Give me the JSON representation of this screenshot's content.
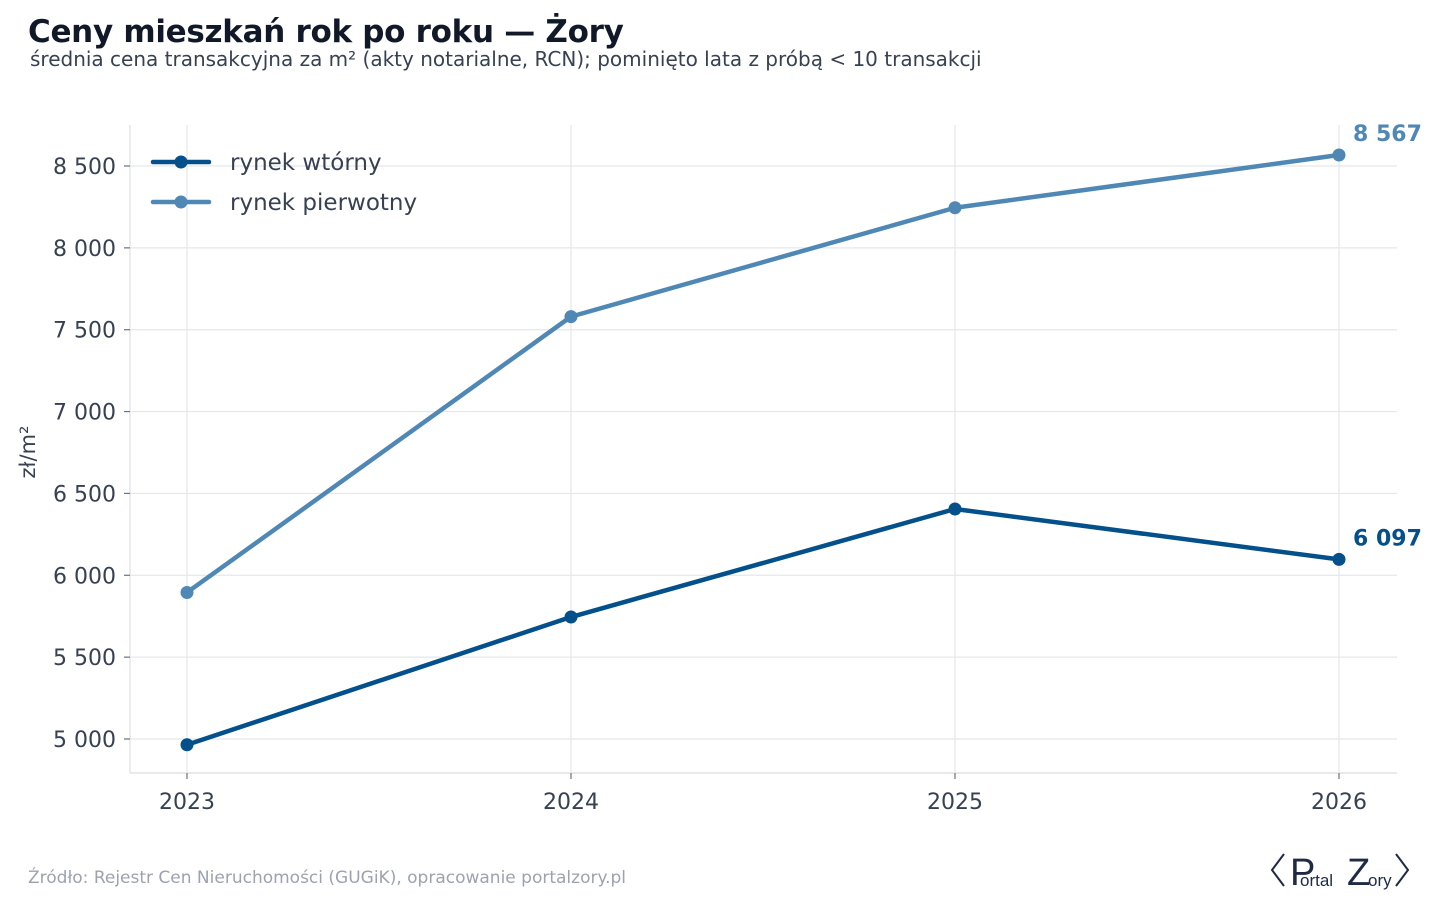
{
  "header": {
    "title": "Ceny mieszkań rok po roku — Żory",
    "subtitle": "średnia cena transakcyjna za m² (akty notarialne, RCN); pominięto lata z próbą < 10 transakcji"
  },
  "footer": {
    "source": "Źródło: Rejestr Cen Nieruchomości (GUGiK), opracowanie portalzory.pl"
  },
  "logo": {
    "text_p": "P",
    "text_ortal": "ortal",
    "text_z": "Z",
    "text_ory": "ory"
  },
  "chart_data": {
    "type": "line",
    "x": [
      "2023",
      "2024",
      "2025",
      "2026"
    ],
    "ylabel": "zł/m²",
    "xlabel": "",
    "ylim": [
      4800,
      8750
    ],
    "yticks": [
      5000,
      5500,
      6000,
      6500,
      7000,
      7500,
      8000,
      8500
    ],
    "ytick_labels": [
      "5 000",
      "5 500",
      "6 000",
      "6 500",
      "7 000",
      "7 500",
      "8 000",
      "8 500"
    ],
    "grid": true,
    "legend_position": "top-left",
    "series": [
      {
        "name": "rynek wtórny",
        "color": "#04508a",
        "values": [
          4965,
          5745,
          6405,
          6097
        ],
        "end_label": "6 097"
      },
      {
        "name": "rynek pierwotny",
        "color": "#4f88b5",
        "values": [
          5895,
          7580,
          8245,
          8567
        ],
        "end_label": "8 567"
      }
    ]
  }
}
